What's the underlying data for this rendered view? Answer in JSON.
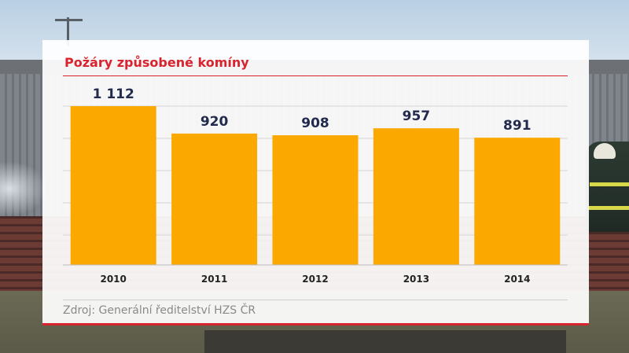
{
  "panel": {
    "title": "Požáry způsobené komíny",
    "source": "Zdroj: Generální ředitelství HZS ČR"
  },
  "colors": {
    "bar": "#fba800",
    "title": "#d9232e",
    "value_label": "#222a4d",
    "grid": "#d4d4d4"
  },
  "chart_data": {
    "type": "bar",
    "categories": [
      "2010",
      "2011",
      "2012",
      "2013",
      "2014"
    ],
    "values": [
      1112,
      920,
      908,
      957,
      891
    ],
    "value_labels": [
      "1 112",
      "920",
      "908",
      "957",
      "891"
    ],
    "title": "Požáry způsobené komíny",
    "xlabel": "",
    "ylabel": "",
    "ylim": [
      0,
      1112
    ],
    "grid": true,
    "legend": "none"
  }
}
